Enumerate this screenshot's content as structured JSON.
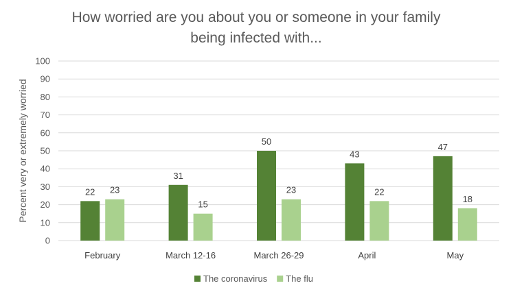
{
  "chart_data": {
    "type": "bar",
    "title_lines": [
      "How worried are you about you or someone in your family",
      "being infected with..."
    ],
    "ylabel": "Percent very or extremely worried",
    "xlabel": "",
    "ylim": [
      0,
      100
    ],
    "yticks": [
      0,
      10,
      20,
      30,
      40,
      50,
      60,
      70,
      80,
      90,
      100
    ],
    "categories": [
      "February",
      "March 12-16",
      "March 26-29",
      "April",
      "May"
    ],
    "series": [
      {
        "name": "The coronavirus",
        "color": "#548235",
        "values": [
          22,
          31,
          50,
          43,
          47
        ]
      },
      {
        "name": "The flu",
        "color": "#a9d18e",
        "values": [
          23,
          15,
          23,
          22,
          18
        ]
      }
    ],
    "grid": true,
    "legend_position": "bottom"
  }
}
